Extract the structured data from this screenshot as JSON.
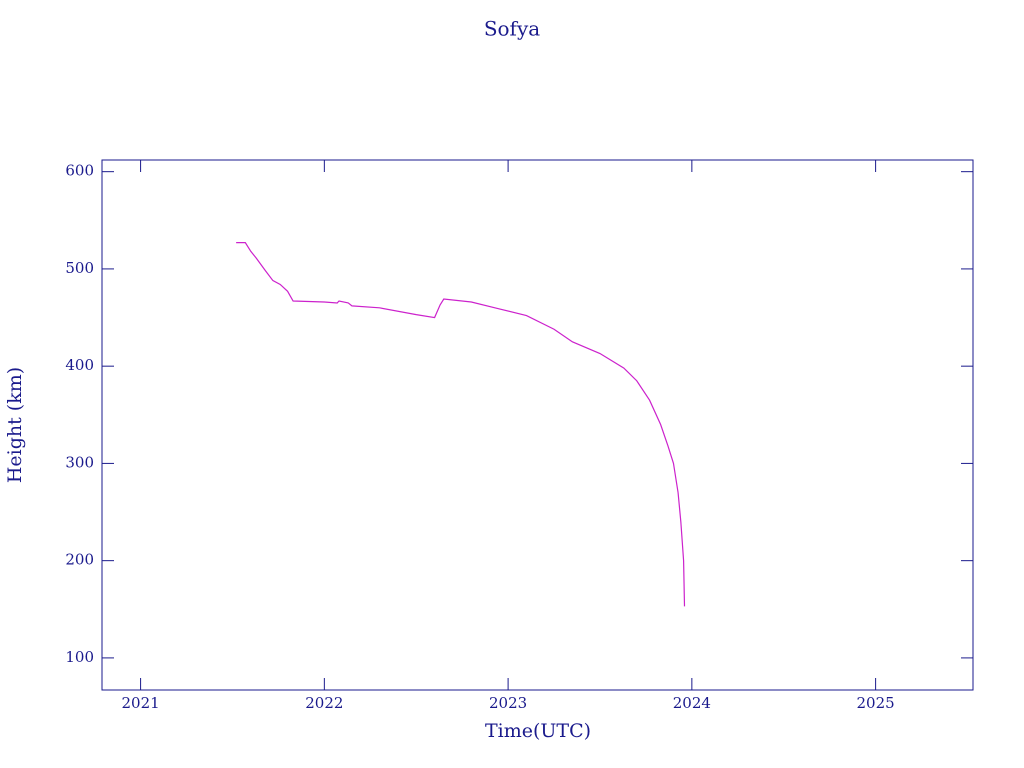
{
  "chart_data": {
    "type": "line",
    "title": "Sofya",
    "xlabel": "Time(UTC)",
    "ylabel": "Height (km)",
    "xlim": [
      2020.79,
      2025.53
    ],
    "ylim": [
      67,
      612
    ],
    "xticks": [
      2021,
      2022,
      2023,
      2024,
      2025
    ],
    "yticks": [
      100,
      200,
      300,
      400,
      500,
      600
    ],
    "axis_color": "#1a1a8c",
    "series": [
      {
        "name": "Sofya",
        "color": "#cc22cc",
        "x": [
          2021.52,
          2021.57,
          2021.6,
          2021.63,
          2021.68,
          2021.72,
          2021.76,
          2021.8,
          2021.83,
          2022.0,
          2022.07,
          2022.08,
          2022.13,
          2022.15,
          2022.3,
          2022.5,
          2022.6,
          2022.63,
          2022.65,
          2022.8,
          2022.95,
          2023.1,
          2023.25,
          2023.35,
          2023.5,
          2023.63,
          2023.7,
          2023.77,
          2023.83,
          2023.87,
          2023.9,
          2023.925,
          2023.94,
          2023.955,
          2023.96
        ],
        "values": [
          527,
          527,
          518,
          511,
          498,
          488,
          484,
          477,
          467,
          466,
          465,
          467,
          465,
          462,
          460,
          453,
          450,
          463,
          469,
          466,
          459,
          452,
          438,
          425,
          413,
          398,
          385,
          365,
          340,
          318,
          300,
          270,
          240,
          200,
          153
        ]
      }
    ]
  }
}
